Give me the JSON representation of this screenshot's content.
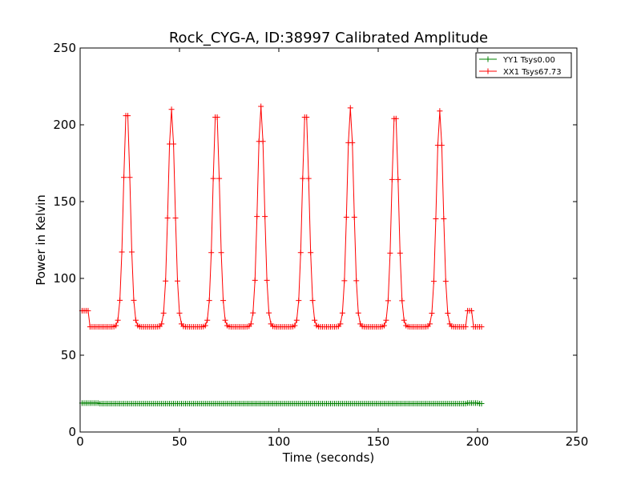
{
  "chart_data": {
    "type": "line",
    "title": "Rock_CYG-A, ID:38997 Calibrated Amplitude",
    "xlabel": "Time (seconds)",
    "ylabel": "Power in Kelvin",
    "xlim": [
      0,
      250
    ],
    "ylim": [
      0,
      250
    ],
    "xticks": [
      "0",
      "50",
      "100",
      "150",
      "200",
      "250"
    ],
    "yticks": [
      "0",
      "50",
      "100",
      "150",
      "200",
      "250"
    ],
    "legend_position": "top-right",
    "grid": false,
    "marker": "plus",
    "series": [
      {
        "name": "YY1 Tsys0.00",
        "color": "#008000",
        "start": 1,
        "end": 202,
        "step": 1,
        "baseline": 18.5,
        "cal_on": [
          [
            1,
            9
          ],
          [
            195,
            200
          ]
        ],
        "cal_value": 18.8,
        "peaks": []
      },
      {
        "name": "XX1 Tsys67.73",
        "color": "#ff0000",
        "start": 1,
        "end": 202,
        "step": 1,
        "baseline": 68.5,
        "cal_on": [
          [
            1,
            4
          ],
          [
            195,
            197
          ]
        ],
        "cal_value": 79,
        "peaks": [
          {
            "center": 23.5,
            "height": 212
          },
          {
            "center": 46,
            "height": 210
          },
          {
            "center": 68.5,
            "height": 211
          },
          {
            "center": 91,
            "height": 212
          },
          {
            "center": 113.5,
            "height": 211
          },
          {
            "center": 136,
            "height": 211
          },
          {
            "center": 158.5,
            "height": 210
          },
          {
            "center": 181,
            "height": 209
          }
        ],
        "peak_width": 1.7
      }
    ]
  }
}
